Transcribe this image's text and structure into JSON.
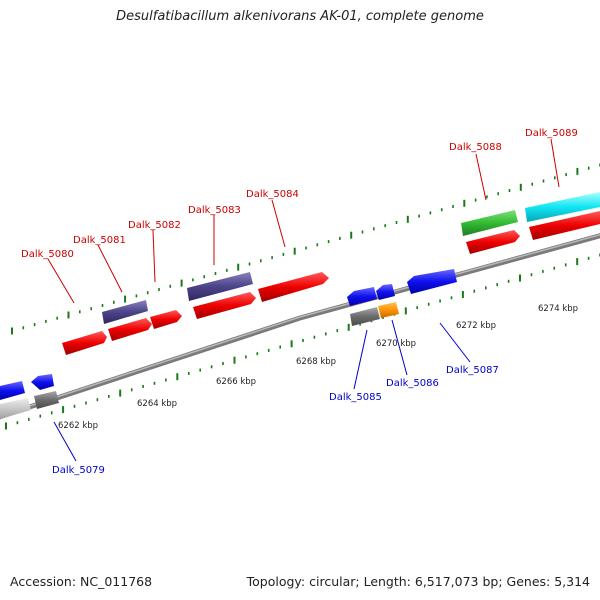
{
  "title": "Desulfatibacillum alkenivorans AK-01, complete genome",
  "footer": {
    "accession": "Accession: NC_011768",
    "summary": "Topology: circular; Length: 6,517,073 bp; Genes: 5,314"
  },
  "colors": {
    "label_top": "#cc0000",
    "label_bottom": "#0000cc",
    "tick": "#1a7a1a",
    "backbone": "#888888"
  },
  "scale": {
    "unit": "kbp",
    "ticks": [
      {
        "label": "6262 kbp",
        "kbp": 6262
      },
      {
        "label": "6264 kbp",
        "kbp": 6264
      },
      {
        "label": "6266 kbp",
        "kbp": 6266
      },
      {
        "label": "6268 kbp",
        "kbp": 6268
      },
      {
        "label": "6270 kbp",
        "kbp": 6270
      },
      {
        "label": "6272 kbp",
        "kbp": 6272
      },
      {
        "label": "6274 kbp",
        "kbp": 6274
      }
    ]
  },
  "top_labels": [
    {
      "text": "Dalk_5080",
      "kbp": 6262.8
    },
    {
      "text": "Dalk_5081",
      "kbp": 6264.0
    },
    {
      "text": "Dalk_5082",
      "kbp": 6264.8
    },
    {
      "text": "Dalk_5083",
      "kbp": 6266.2
    },
    {
      "text": "Dalk_5084",
      "kbp": 6267.9
    },
    {
      "text": "Dalk_5088",
      "kbp": 6272.6
    },
    {
      "text": "Dalk_5089",
      "kbp": 6274.3
    }
  ],
  "bottom_labels": [
    {
      "text": "Dalk_5079",
      "kbp": 6261.5
    },
    {
      "text": "Dalk_5085",
      "kbp": 6269.8
    },
    {
      "text": "Dalk_5086",
      "kbp": 6270.2
    },
    {
      "text": "Dalk_5087",
      "kbp": 6271.5
    }
  ]
}
